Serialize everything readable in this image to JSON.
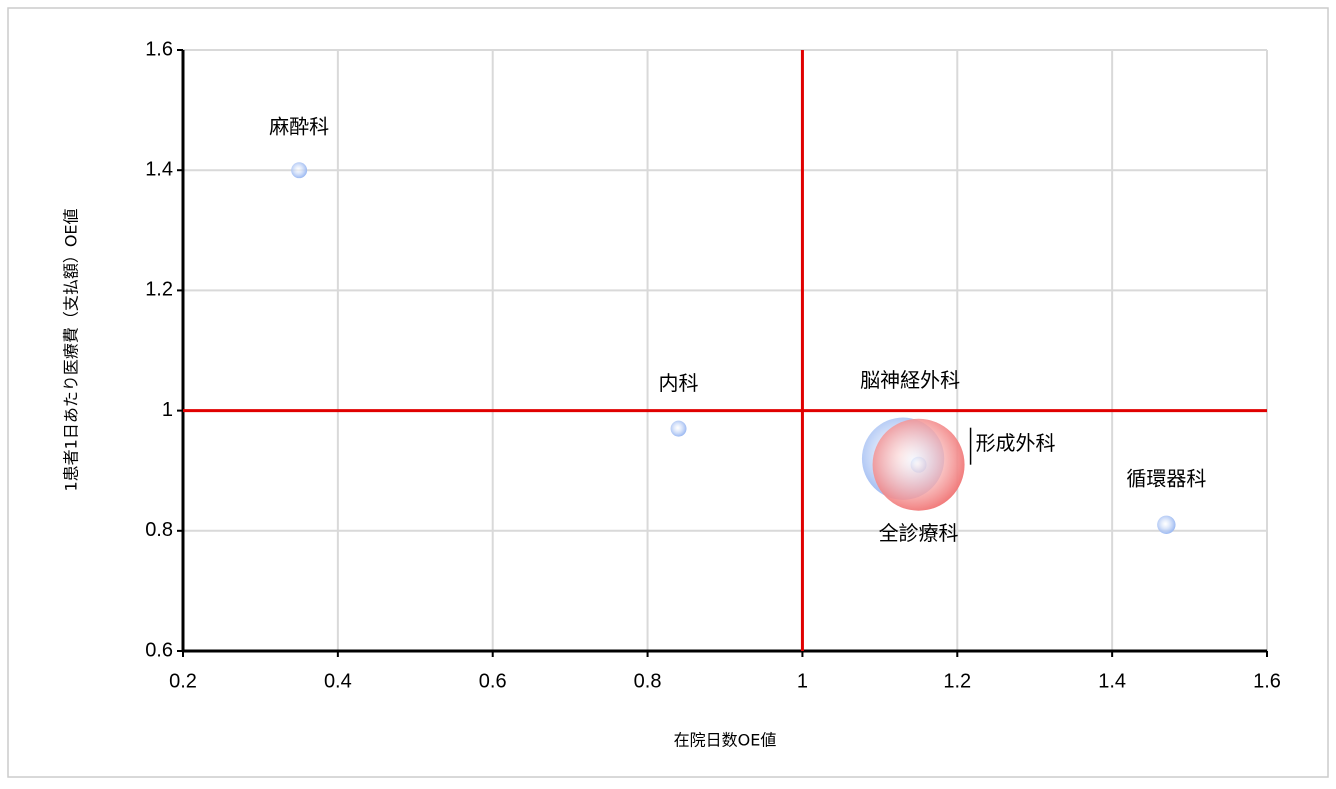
{
  "chart_data": {
    "type": "bubble",
    "x_label": "在院日数OE値",
    "y_label": "1患者1日あたり医療費（支払額）OE値",
    "xlim": [
      0.2,
      1.6
    ],
    "xticks": [
      0.2,
      0.4,
      0.6,
      0.8,
      1,
      1.2,
      1.4,
      1.6
    ],
    "ylim": [
      0.6,
      1.6
    ],
    "yticks": [
      0.6,
      0.8,
      1,
      1.2,
      1.4,
      1.6
    ],
    "grid": true,
    "reference_lines": {
      "x": 1,
      "y": 1,
      "color": "#e00000"
    },
    "points": [
      {
        "name": "麻酔科",
        "x": 0.35,
        "y": 1.4,
        "size": 3,
        "color": "#8fb0f0"
      },
      {
        "name": "内科",
        "x": 0.84,
        "y": 0.97,
        "size": 3,
        "color": "#8fb0f0"
      },
      {
        "name": "脳神経外科",
        "x": 1.13,
        "y": 0.92,
        "size": 80,
        "color": "#8fb0f0"
      },
      {
        "name": "形成外科",
        "x": 1.15,
        "y": 0.91,
        "size": 3,
        "color": "#8fb0f0"
      },
      {
        "name": "全診療科",
        "x": 1.15,
        "y": 0.91,
        "size": 100,
        "color": "#f07070"
      },
      {
        "name": "循環器科",
        "x": 1.47,
        "y": 0.81,
        "size": 4,
        "color": "#8fb0f0"
      }
    ]
  }
}
